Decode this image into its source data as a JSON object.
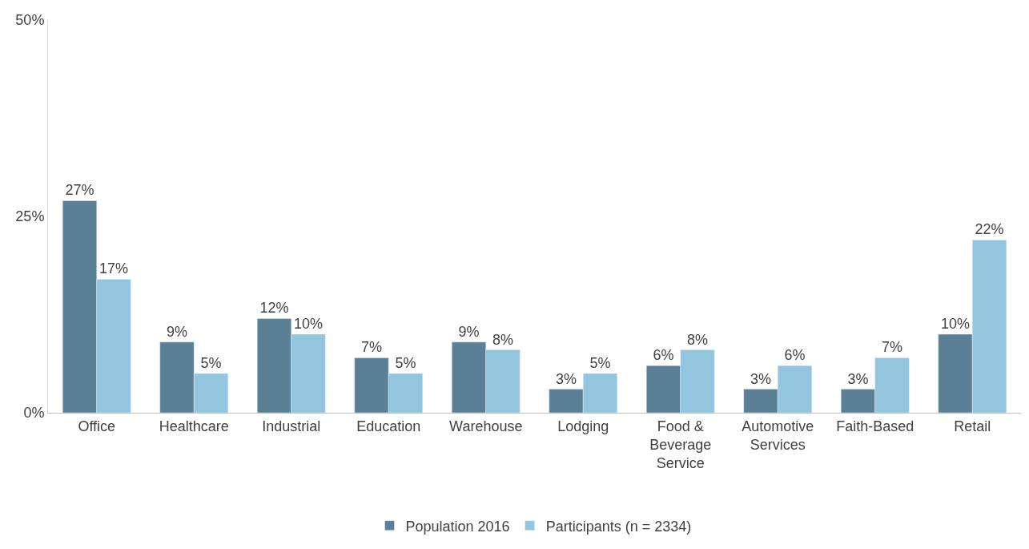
{
  "chart_data": {
    "type": "bar",
    "categories": [
      "Office",
      "Healthcare",
      "Industrial",
      "Education",
      "Warehouse",
      "Lodging",
      "Food & Beverage Service",
      "Automotive Services",
      "Faith-Based",
      "Retail"
    ],
    "series": [
      {
        "name": "Population 2016",
        "color": "#5b7f95",
        "values": [
          27,
          9,
          12,
          7,
          9,
          3,
          6,
          3,
          3,
          10
        ],
        "value_labels": [
          "27%",
          "9%",
          "12%",
          "7%",
          "9%",
          "3%",
          "6%",
          "3%",
          "3%",
          "10%"
        ]
      },
      {
        "name": "Participants (n = 2334)",
        "color": "#92c5de",
        "values": [
          17,
          5,
          10,
          5,
          8,
          5,
          8,
          6,
          7,
          22
        ],
        "value_labels": [
          "17%",
          "5%",
          "10%",
          "5%",
          "8%",
          "5%",
          "8%",
          "6%",
          "7%",
          "22%"
        ]
      }
    ],
    "ylim": [
      0,
      50
    ],
    "yticks": [
      {
        "value": 0,
        "label": "0%"
      },
      {
        "value": 25,
        "label": "25%"
      },
      {
        "value": 50,
        "label": "50%"
      }
    ],
    "legend": "bottom"
  }
}
